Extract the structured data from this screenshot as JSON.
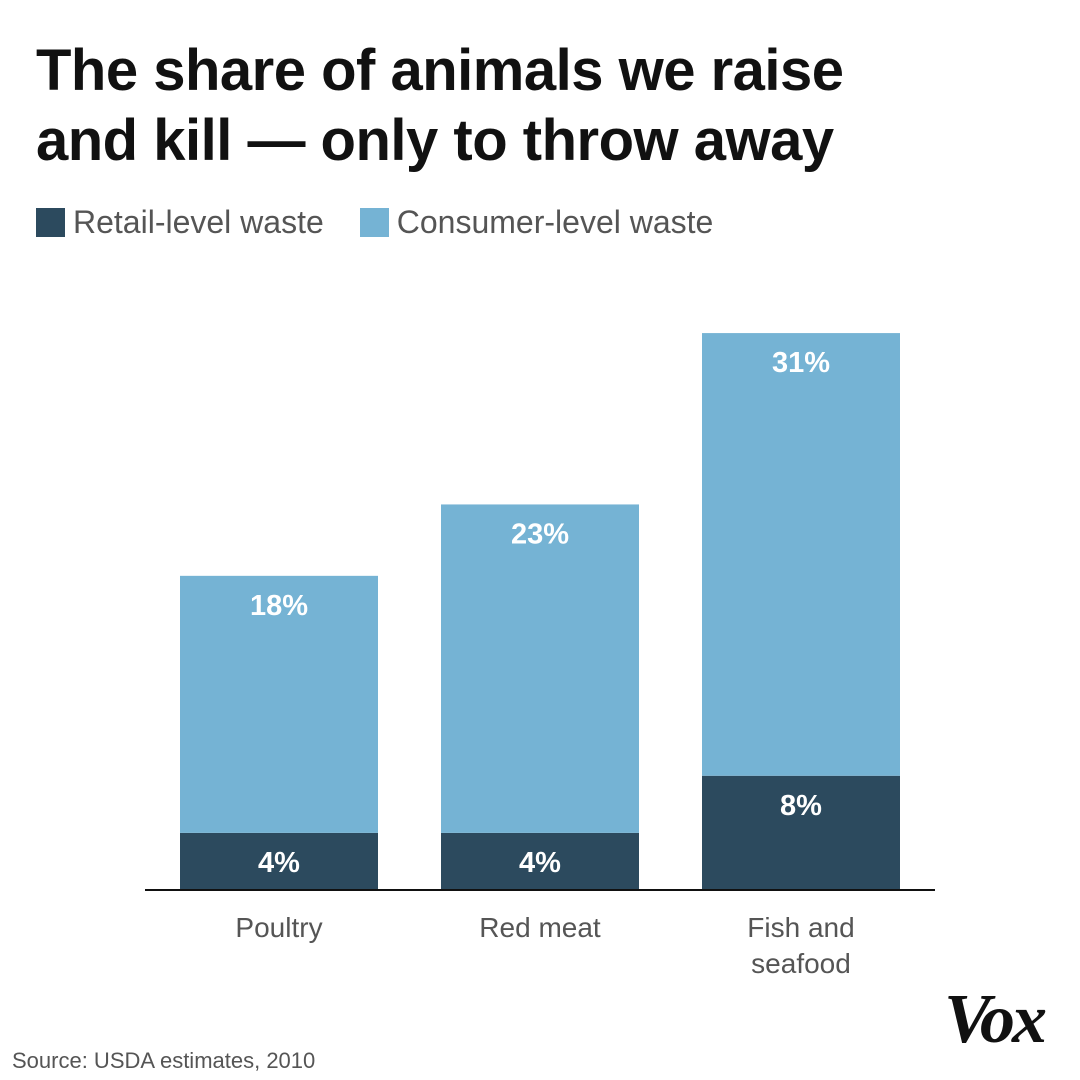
{
  "title_line1": "The share of animals we raise",
  "title_line2": "and kill — only to throw away",
  "legend": [
    {
      "label": "Retail-level waste",
      "color": "#2c4a5e"
    },
    {
      "label": "Consumer-level waste",
      "color": "#75b3d4"
    }
  ],
  "chart_data": {
    "type": "bar",
    "stacked": true,
    "categories": [
      [
        "Poultry"
      ],
      [
        "Red meat"
      ],
      [
        "Fish and",
        "seafood"
      ]
    ],
    "series": [
      {
        "name": "Retail-level waste",
        "values": [
          4,
          4,
          8
        ],
        "labels": [
          "4%",
          "4%",
          "8%"
        ],
        "color": "#2c4a5e"
      },
      {
        "name": "Consumer-level waste",
        "values": [
          18,
          23,
          31
        ],
        "labels": [
          "18%",
          "23%",
          "31%"
        ],
        "color": "#75b3d4"
      }
    ],
    "ylim": [
      0,
      39
    ],
    "grid": false,
    "legend_position": "top-left"
  },
  "source": "Source: USDA estimates, 2010",
  "logo": "Vox",
  "colors": {
    "axis": "#111111",
    "label_text": "#555555",
    "value_text": "#ffffff"
  }
}
